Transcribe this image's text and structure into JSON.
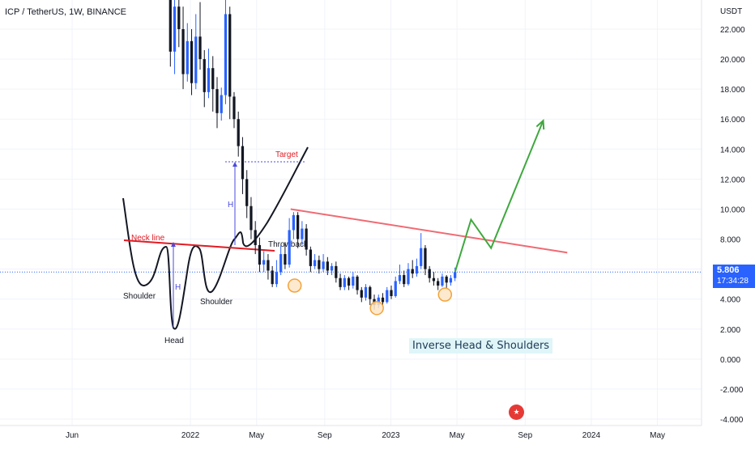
{
  "header": {
    "symbol_title": "ICP / TetherUS, 1W, BINANCE"
  },
  "price_scale": {
    "currency": "USDT",
    "last_price": "5.806",
    "countdown": "17:34:28"
  },
  "annotations": {
    "caption": "Inverse Head & Shoulders",
    "inset_labels": {
      "neck_line": "Neck line",
      "target": "Target",
      "throwback": "Throwback",
      "left_shoulder": "Shoulder",
      "head": "Head",
      "right_shoulder": "Shoulder",
      "height_a": "H",
      "height_b": "H"
    }
  },
  "colors": {
    "bull_candle": "#2962ff",
    "bear_candle": "#131722",
    "neckline": "#f06a73",
    "projection": "#3ea83e",
    "marker_fill": "#fde5c6",
    "marker_stroke": "#f2a33a",
    "last_price_line": "#2962ff"
  },
  "chart_data": {
    "type": "candlestick",
    "y_scale": {
      "min": -4,
      "max": 22,
      "unit": "USDT"
    },
    "ytick_labels": [
      "22.000",
      "20.000",
      "18.000",
      "16.000",
      "14.000",
      "12.000",
      "10.000",
      "8.000",
      "6.000",
      "4.000",
      "2.000",
      "0.000",
      "-2.000",
      "-4.000"
    ],
    "ytick_values": [
      22,
      20,
      18,
      16,
      14,
      12,
      10,
      8,
      6,
      4,
      2,
      0,
      -2,
      -4
    ],
    "xtick_labels": [
      "Jun",
      "2022",
      "May",
      "Sep",
      "2023",
      "May",
      "Sep",
      "2024",
      "May"
    ],
    "xtick_values": [
      2021.41,
      2022.0,
      2022.33,
      2022.67,
      2023.0,
      2023.33,
      2023.67,
      2024.0,
      2024.33
    ],
    "x_range": [
      2021.05,
      2024.55
    ],
    "candles": [
      [
        24.0,
        20.5,
        25.5,
        19.5
      ],
      [
        20.5,
        23.5,
        25.5,
        19.0
      ],
      [
        23.5,
        22.0,
        25.5,
        20.8
      ],
      [
        22.0,
        19.0,
        23.5,
        18.0
      ],
      [
        19.0,
        21.2,
        22.4,
        18.5
      ],
      [
        21.2,
        18.4,
        22.0,
        17.6
      ],
      [
        18.4,
        21.5,
        23.0,
        18.0
      ],
      [
        21.5,
        20.0,
        23.8,
        19.3
      ],
      [
        20.0,
        17.8,
        20.6,
        16.8
      ],
      [
        17.8,
        19.4,
        20.7,
        17.4
      ],
      [
        19.4,
        18.0,
        20.2,
        16.5
      ],
      [
        18.0,
        16.4,
        18.8,
        15.4
      ],
      [
        16.4,
        17.6,
        18.1,
        15.9
      ],
      [
        17.6,
        23.0,
        24.0,
        17.0
      ],
      [
        23.0,
        17.5,
        23.5,
        16.0
      ],
      [
        17.5,
        16.0,
        17.8,
        15.4
      ],
      [
        16.0,
        14.2,
        16.5,
        13.5
      ],
      [
        14.2,
        12.0,
        14.8,
        11.0
      ],
      [
        12.0,
        10.2,
        12.6,
        9.4
      ],
      [
        10.2,
        8.6,
        10.8,
        8.0
      ],
      [
        8.6,
        7.6,
        9.2,
        7.0
      ],
      [
        7.6,
        6.3,
        8.1,
        5.8
      ],
      [
        6.3,
        6.6,
        7.2,
        5.8
      ],
      [
        6.6,
        5.9,
        7.0,
        5.3
      ],
      [
        5.9,
        5.0,
        6.2,
        4.8
      ],
      [
        5.0,
        5.8,
        6.6,
        4.8
      ],
      [
        5.8,
        7.0,
        7.6,
        5.6
      ],
      [
        7.0,
        6.3,
        7.8,
        6.0
      ],
      [
        6.3,
        8.6,
        9.4,
        6.1
      ],
      [
        8.6,
        9.6,
        9.8,
        8.0
      ],
      [
        9.6,
        8.0,
        9.8,
        7.4
      ],
      [
        8.0,
        8.7,
        9.2,
        7.6
      ],
      [
        8.7,
        7.3,
        9.0,
        6.9
      ],
      [
        7.3,
        6.2,
        7.5,
        5.8
      ],
      [
        6.2,
        6.6,
        7.0,
        6.0
      ],
      [
        6.6,
        6.0,
        6.9,
        5.7
      ],
      [
        6.0,
        6.5,
        7.0,
        5.8
      ],
      [
        6.5,
        5.9,
        6.8,
        5.6
      ],
      [
        5.9,
        6.2,
        6.4,
        5.6
      ],
      [
        6.2,
        5.4,
        6.5,
        5.1
      ],
      [
        5.4,
        4.8,
        5.7,
        4.6
      ],
      [
        4.8,
        5.4,
        5.6,
        4.6
      ],
      [
        5.4,
        4.9,
        5.5,
        4.6
      ],
      [
        4.9,
        5.5,
        5.8,
        4.7
      ],
      [
        5.5,
        4.6,
        5.6,
        4.3
      ],
      [
        4.6,
        4.1,
        4.8,
        3.8
      ],
      [
        4.1,
        4.8,
        5.0,
        3.9
      ],
      [
        4.8,
        4.0,
        4.9,
        3.6
      ],
      [
        4.0,
        3.6,
        4.3,
        3.3
      ],
      [
        3.6,
        4.1,
        4.3,
        3.4
      ],
      [
        4.1,
        3.8,
        4.4,
        3.5
      ],
      [
        3.8,
        4.6,
        4.8,
        3.7
      ],
      [
        4.6,
        4.2,
        4.9,
        4.0
      ],
      [
        4.2,
        5.2,
        5.5,
        4.1
      ],
      [
        5.2,
        5.6,
        6.3,
        5.0
      ],
      [
        5.6,
        5.0,
        5.9,
        4.8
      ],
      [
        5.0,
        6.0,
        6.4,
        4.9
      ],
      [
        6.0,
        5.7,
        6.6,
        5.4
      ],
      [
        5.7,
        6.2,
        6.7,
        5.5
      ],
      [
        6.2,
        7.4,
        8.4,
        6.0
      ],
      [
        7.4,
        6.0,
        7.6,
        5.6
      ],
      [
        6.0,
        5.4,
        6.2,
        5.1
      ],
      [
        5.4,
        5.2,
        5.8,
        4.9
      ],
      [
        5.2,
        4.9,
        5.4,
        4.6
      ],
      [
        4.9,
        5.5,
        5.7,
        4.8
      ],
      [
        5.5,
        5.1,
        5.6,
        4.7
      ],
      [
        5.1,
        5.4,
        5.6,
        4.9
      ],
      [
        5.4,
        5.806,
        6.1,
        5.2
      ]
    ],
    "candle_x_range": [
      2021.9,
      2023.32
    ],
    "neckline": [
      [
        2022.5,
        10.0
      ],
      [
        2023.88,
        7.1
      ]
    ],
    "projection_path": [
      [
        2023.32,
        5.8
      ],
      [
        2023.4,
        9.3
      ],
      [
        2023.5,
        7.4
      ],
      [
        2023.76,
        15.9
      ]
    ],
    "pattern_markers": [
      [
        2022.52,
        4.9
      ],
      [
        2022.93,
        3.4
      ],
      [
        2023.27,
        4.3
      ]
    ]
  }
}
